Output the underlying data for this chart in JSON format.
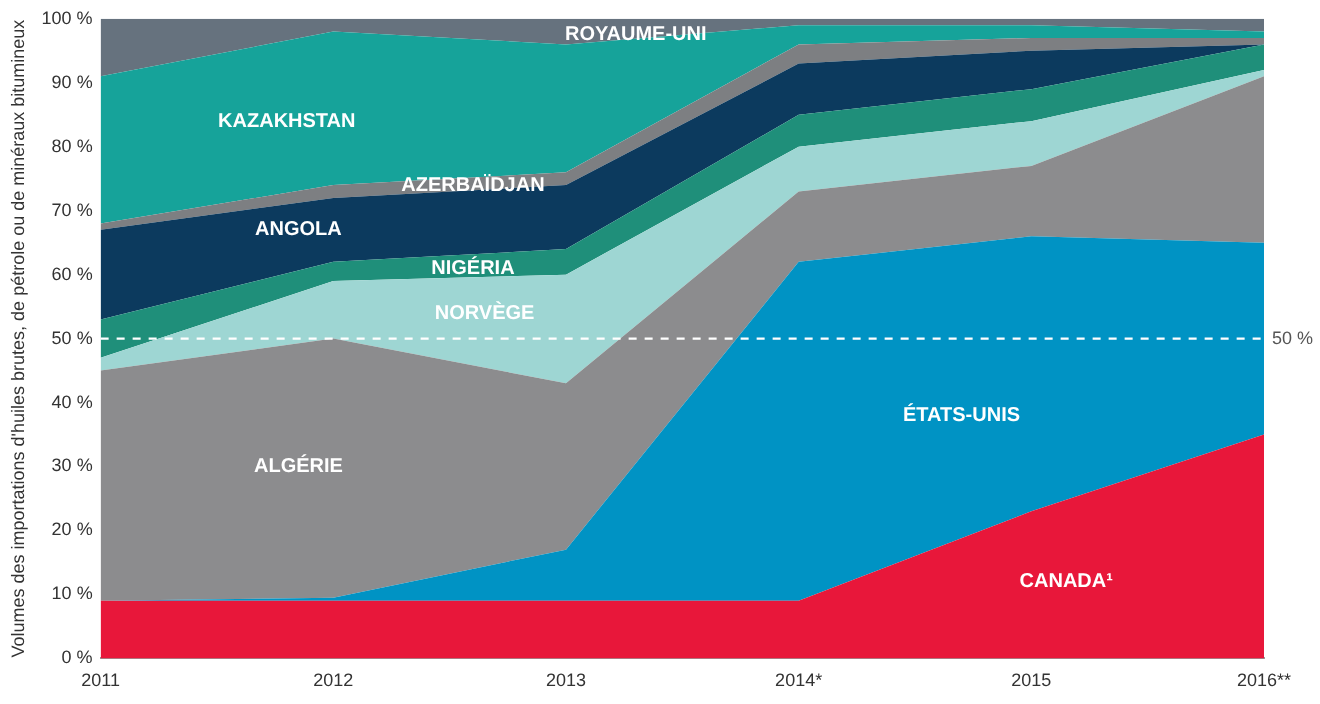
{
  "chart_data": {
    "type": "area",
    "stacked": true,
    "ylabel": "Volumes des importations d'huiles brutes, de pétrole ou de minéraux bitumineux",
    "categories": [
      "2011",
      "2012",
      "2013",
      "2014*",
      "2015",
      "2016**"
    ],
    "series": [
      {
        "name": "CANADA¹",
        "color": "#e8173a",
        "values": [
          9,
          9,
          9,
          9,
          23,
          35
        ]
      },
      {
        "name": "ÉTATS-UNIS",
        "color": "#0093c4",
        "values": [
          0,
          0.5,
          8,
          53,
          43,
          30
        ]
      },
      {
        "name": "ALGÉRIE",
        "color": "#8c8c8e",
        "values": [
          36,
          40.5,
          26,
          11,
          11,
          26
        ]
      },
      {
        "name": "NORVÈGE",
        "color": "#9ed6d3",
        "values": [
          2,
          9,
          17,
          7,
          7,
          1
        ]
      },
      {
        "name": "NIGÉRIA",
        "color": "#1f8f7a",
        "values": [
          6,
          3,
          4,
          5,
          5,
          4
        ]
      },
      {
        "name": "ANGOLA",
        "color": "#0c3a5e",
        "values": [
          14,
          10,
          10,
          8,
          6,
          0
        ]
      },
      {
        "name": "AZERBAÏDJAN",
        "color": "#7d7f82",
        "values": [
          1,
          2,
          2,
          3,
          2,
          1
        ]
      },
      {
        "name": "KAZAKHSTAN",
        "color": "#16a39a",
        "values": [
          23,
          24,
          20,
          3,
          2,
          1
        ]
      },
      {
        "name": "ROYAUME-UNI",
        "color": "#66727e",
        "values": [
          9,
          2,
          4,
          1,
          1,
          2
        ]
      }
    ],
    "ylim": [
      0,
      100
    ],
    "yticks": [
      {
        "value": 0,
        "label": "0 %"
      },
      {
        "value": 10,
        "label": "10 %"
      },
      {
        "value": 20,
        "label": "20 %"
      },
      {
        "value": 30,
        "label": "30 %"
      },
      {
        "value": 40,
        "label": "40 %"
      },
      {
        "value": 50,
        "label": "50 %"
      },
      {
        "value": 60,
        "label": "60 %"
      },
      {
        "value": 70,
        "label": "70 %"
      },
      {
        "value": 80,
        "label": "80 %"
      },
      {
        "value": 90,
        "label": "90 %"
      },
      {
        "value": 100,
        "label": "100 %"
      }
    ],
    "ref_lines": [
      {
        "axis": "y",
        "value": 50,
        "label": "50 %",
        "color": "#ffffff",
        "line_style": "dashed"
      }
    ],
    "grid": false,
    "legend": false
  }
}
